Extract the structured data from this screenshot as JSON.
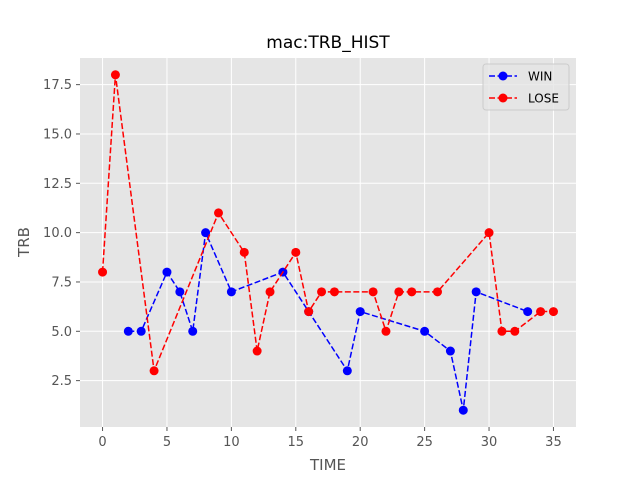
{
  "chart_data": {
    "type": "line",
    "title": "mac:TRB_HIST",
    "xlabel": "TIME",
    "ylabel": "TRB",
    "xlim": [
      -1.75,
      36.75
    ],
    "ylim": [
      0.15,
      18.85
    ],
    "x_ticks": [
      0,
      5,
      10,
      15,
      20,
      25,
      30,
      35
    ],
    "y_ticks": [
      2.5,
      5.0,
      7.5,
      10.0,
      12.5,
      15.0,
      17.5
    ],
    "x_tick_labels": [
      "0",
      "5",
      "10",
      "15",
      "20",
      "25",
      "30",
      "35"
    ],
    "y_tick_labels": [
      "2.5",
      "5.0",
      "7.5",
      "10.0",
      "12.5",
      "15.0",
      "17.5"
    ],
    "grid": true,
    "legend_position": "top-right",
    "style": "ggplot",
    "series": [
      {
        "name": "WIN",
        "color": "#0000ff",
        "line_style": "dashed",
        "marker": "circle",
        "x": [
          2,
          3,
          5,
          6,
          7,
          8,
          10,
          14,
          16,
          19,
          20,
          25,
          27,
          28,
          29,
          33
        ],
        "y": [
          5,
          5,
          8,
          7,
          5,
          10,
          7,
          8,
          6,
          3,
          6,
          5,
          4,
          1,
          7,
          6
        ]
      },
      {
        "name": "LOSE",
        "color": "#ff0000",
        "line_style": "dashed",
        "marker": "circle",
        "x": [
          0,
          1,
          4,
          9,
          11,
          12,
          13,
          15,
          16,
          17,
          18,
          21,
          22,
          23,
          24,
          26,
          30,
          31,
          32,
          34,
          35
        ],
        "y": [
          8,
          18,
          3,
          11,
          9,
          4,
          7,
          9,
          6,
          7,
          7,
          7,
          5,
          7,
          7,
          7,
          10,
          5,
          5,
          6,
          6
        ]
      }
    ]
  }
}
